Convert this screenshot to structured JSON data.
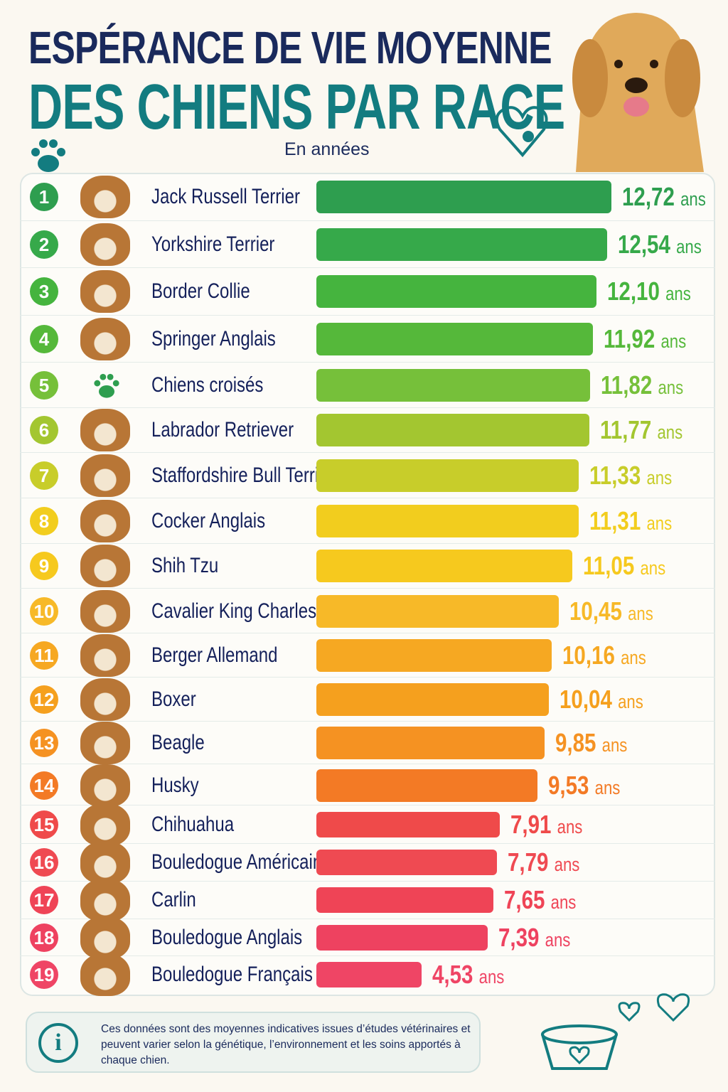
{
  "title_line1": "ESPÉRANCE DE VIE MOYENNE",
  "title_line2": "DES CHIENS PAR RACE",
  "subtitle": "En années",
  "unit": "ans",
  "footer_note": "Ces données sont des moyennes indicatives issues d’études vétérinaires et peuvent varier selon la génétique, l’environnement et les soins apportés à chaque chien.",
  "colors": {
    "title": "#1a2a5c",
    "accent": "#137c80"
  },
  "chart_data": {
    "type": "bar",
    "orientation": "horizontal",
    "title": "ESPÉRANCE DE VIE MOYENNE DES CHIENS PAR RACE",
    "subtitle": "En années",
    "categories": [
      "Jack Russell Terrier",
      "Yorkshire Terrier",
      "Border Collie",
      "Springer Anglais",
      "Chiens croisés",
      "Labrador Retriever",
      "Staffordshire Bull Terrier",
      "Cocker Anglais",
      "Shih Tzu",
      "Cavalier King Charles",
      "Berger Allemand",
      "Boxer",
      "Beagle",
      "Husky",
      "Chihuahua",
      "Bouledogue Américain",
      "Carlin",
      "Bouledogue Anglais",
      "Bouledogue Français"
    ],
    "values": [
      12.72,
      12.54,
      12.1,
      11.92,
      11.82,
      11.77,
      11.33,
      11.31,
      11.05,
      10.45,
      10.16,
      10.04,
      9.85,
      9.53,
      7.91,
      7.79,
      7.65,
      7.39,
      4.53
    ],
    "labels": [
      "12,72",
      "12,54",
      "12,10",
      "11,92",
      "11,82",
      "11,77",
      "11,33",
      "11,31",
      "11,05",
      "10,45",
      "10,16",
      "10,04",
      "9,85",
      "9,53",
      "7,91",
      "7,79",
      "7,65",
      "7,39",
      "4,53"
    ],
    "colors": [
      "#2e9e4f",
      "#36a94a",
      "#45b43e",
      "#55b83a",
      "#76c03a",
      "#a3c630",
      "#c8cd2a",
      "#f2cd1e",
      "#f6c91e",
      "#f7b928",
      "#f6a822",
      "#f5a01e",
      "#f59222",
      "#f37a25",
      "#ef4a4a",
      "#ef4a52",
      "#ef4456",
      "#ee4260",
      "#ef4565"
    ]
  }
}
